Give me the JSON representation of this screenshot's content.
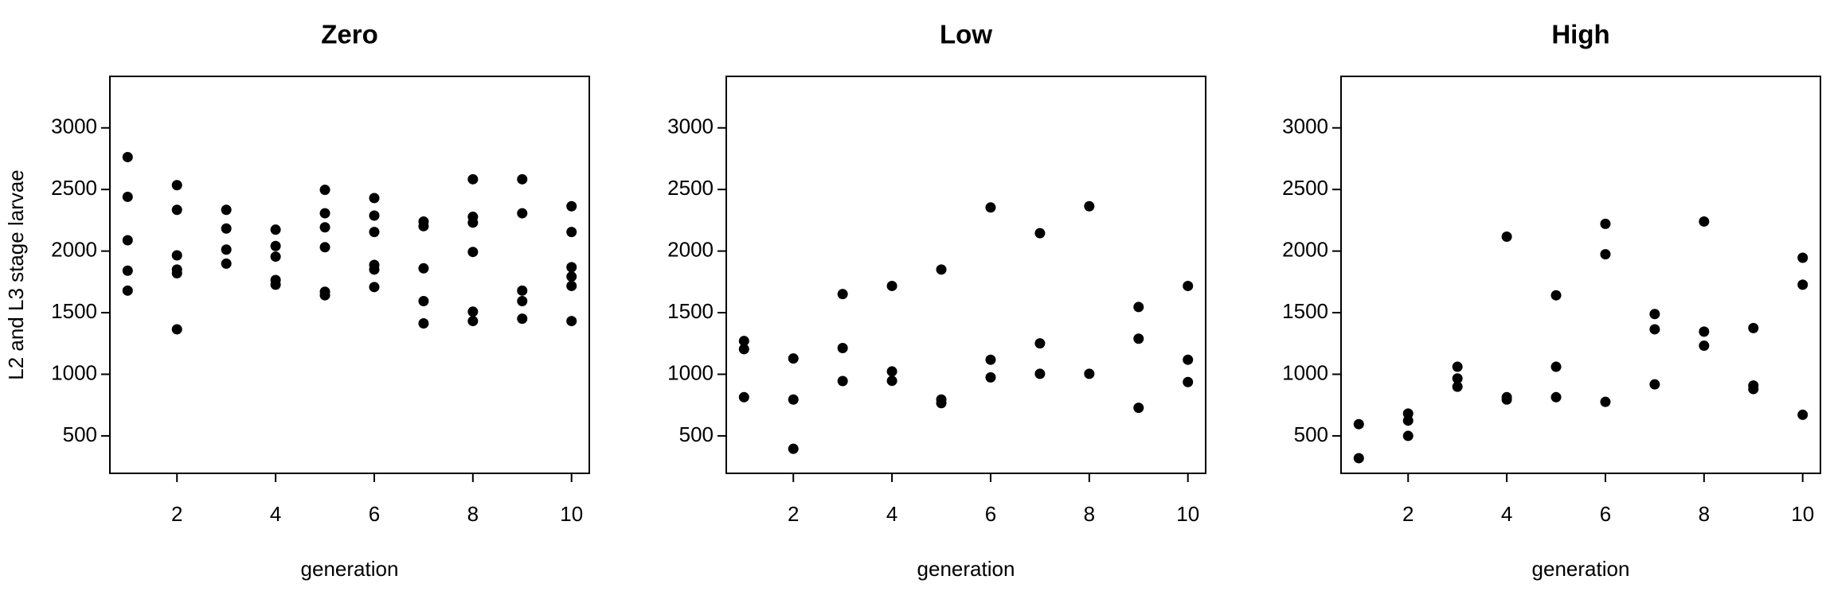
{
  "chart_data": [
    {
      "type": "scatter",
      "title": "Zero",
      "xlabel": "generation",
      "ylabel": "L2 and L3 stage larvae",
      "color": "#000000",
      "x": [
        1,
        1,
        1,
        1,
        1,
        2,
        2,
        2,
        2,
        2,
        2,
        3,
        3,
        3,
        3,
        4,
        4,
        4,
        4,
        4,
        5,
        5,
        5,
        5,
        5,
        5,
        6,
        6,
        6,
        6,
        6,
        6,
        7,
        7,
        7,
        7,
        7,
        8,
        8,
        8,
        8,
        8,
        8,
        9,
        9,
        9,
        9,
        9,
        10,
        10,
        10,
        10,
        10,
        10
      ],
      "values": [
        2763,
        2440,
        2088,
        1841,
        1679,
        2535,
        2335,
        1965,
        1850,
        1820,
        1365,
        2335,
        2183,
        2012,
        1898,
        2174,
        2041,
        1955,
        1765,
        1727,
        2497,
        2307,
        2193,
        2031,
        1670,
        1641,
        2430,
        2288,
        2155,
        1888,
        1850,
        1708,
        2240,
        2202,
        1860,
        1594,
        1413,
        2583,
        2278,
        2231,
        1993,
        1508,
        1432,
        2583,
        2307,
        1679,
        1594,
        1451,
        2364,
        2155,
        1869,
        1793,
        1717,
        1432
      ],
      "xlim": [
        0.64,
        10.36
      ],
      "ylim": [
        196,
        3418
      ],
      "xticks": [
        2,
        4,
        6,
        8,
        10
      ],
      "yticks": [
        500,
        1000,
        1500,
        2000,
        2500,
        3000
      ]
    },
    {
      "type": "scatter",
      "title": "Low",
      "xlabel": "generation",
      "color": "#000000",
      "x": [
        1,
        1,
        1,
        2,
        2,
        2,
        3,
        3,
        3,
        4,
        4,
        4,
        5,
        5,
        5,
        6,
        6,
        6,
        7,
        7,
        7,
        8,
        8,
        9,
        9,
        9,
        10,
        10,
        10
      ],
      "values": [
        1270,
        1204,
        814,
        1128,
        795,
        395,
        1651,
        1213,
        945,
        1717,
        1023,
        947,
        1850,
        795,
        766,
        2354,
        1118,
        975,
        2145,
        1251,
        1004,
        2364,
        1004,
        1546,
        1289,
        728,
        1717,
        1118,
        937
      ],
      "xlim": [
        0.64,
        10.36
      ],
      "ylim": [
        196,
        3418
      ],
      "xticks": [
        2,
        4,
        6,
        8,
        10
      ],
      "yticks": [
        500,
        1000,
        1500,
        2000,
        2500,
        3000
      ]
    },
    {
      "type": "scatter",
      "title": "High",
      "xlabel": "generation",
      "color": "#000000",
      "x": [
        1,
        1,
        2,
        2,
        2,
        3,
        3,
        3,
        4,
        4,
        4,
        5,
        5,
        5,
        6,
        6,
        6,
        7,
        7,
        7,
        8,
        8,
        8,
        9,
        9,
        9,
        10,
        10,
        10
      ],
      "values": [
        595,
        319,
        681,
        624,
        500,
        1061,
        966,
        899,
        2117,
        814,
        795,
        1641,
        1061,
        814,
        2221,
        1974,
        776,
        1489,
        1365,
        918,
        2240,
        1346,
        1232,
        1375,
        909,
        880,
        1946,
        1727,
        671
      ],
      "xlim": [
        0.64,
        10.36
      ],
      "ylim": [
        196,
        3418
      ],
      "xticks": [
        2,
        4,
        6,
        8,
        10
      ],
      "yticks": [
        500,
        1000,
        1500,
        2000,
        2500,
        3000
      ]
    }
  ]
}
